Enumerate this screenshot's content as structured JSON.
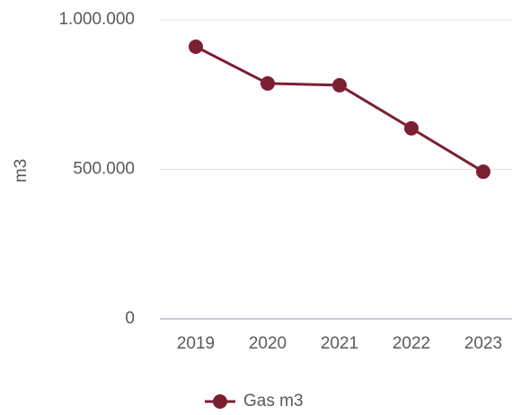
{
  "chart_data": {
    "type": "line",
    "categories": [
      "2019",
      "2020",
      "2021",
      "2022",
      "2023"
    ],
    "series": [
      {
        "name": "Gas m3",
        "color": "#7b1f32",
        "values": [
          910000,
          787000,
          781000,
          637000,
          492000
        ]
      }
    ],
    "ylabel": "m3",
    "ylim": [
      0,
      1000000
    ],
    "yticks": [
      0,
      {
        "value": 500000,
        "label": "500.000"
      },
      {
        "value": 1000000,
        "label": "1.000.000"
      }
    ],
    "grid": true,
    "legend": "bottom"
  }
}
